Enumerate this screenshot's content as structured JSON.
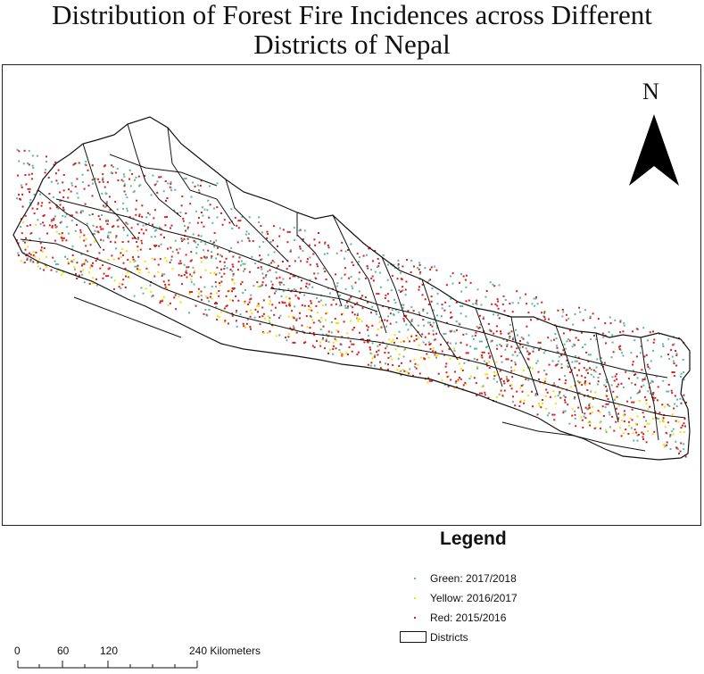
{
  "title_line1": "Distribution of Forest Fire Incidences across Different",
  "title_line2": "Districts of Nepal",
  "north_label": "N",
  "legend": {
    "title": "Legend",
    "items": [
      {
        "label": "Green: 2017/2018",
        "color": "#5fb3a0"
      },
      {
        "label": "Yellow: 2016/2017",
        "color": "#f5e000"
      },
      {
        "label": "Red: 2015/2016",
        "color": "#d31f1f"
      },
      {
        "label": "Districts",
        "color": "#111111"
      }
    ]
  },
  "scale_bar": {
    "ticks": [
      "0",
      "60",
      "120",
      "240 Kilometers"
    ]
  },
  "colors": {
    "boundary": "#111111",
    "background": "#ffffff"
  }
}
